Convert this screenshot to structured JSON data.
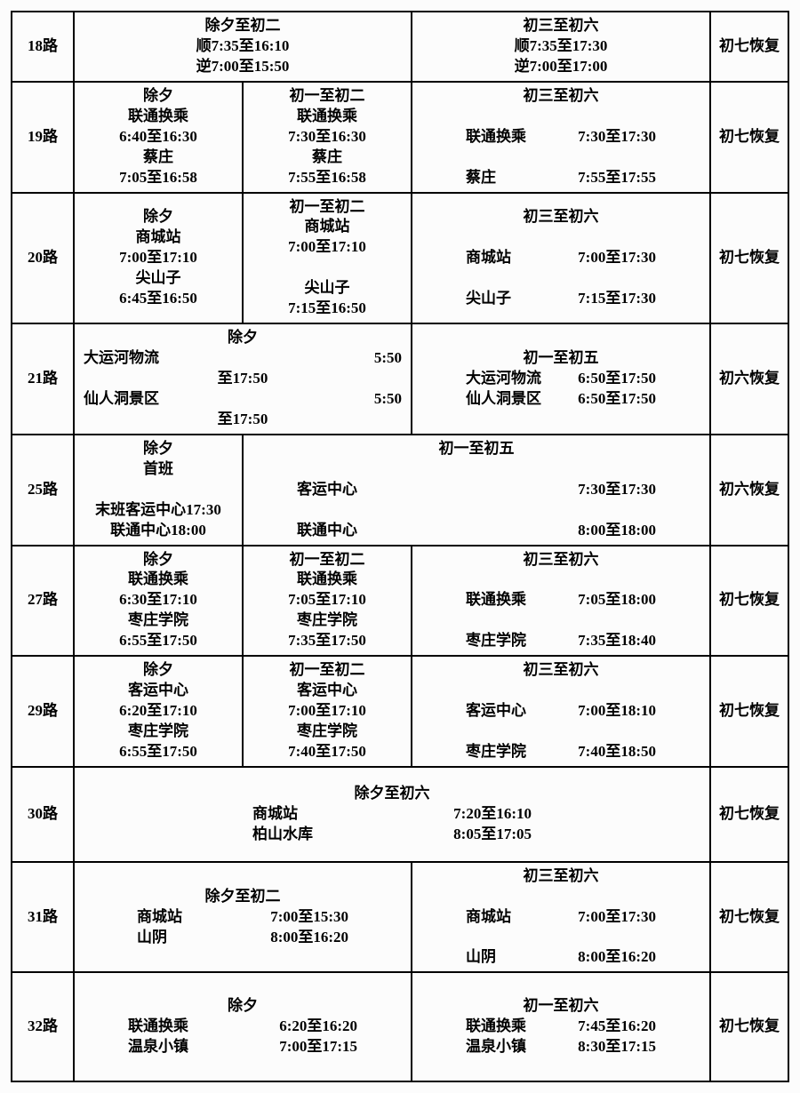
{
  "border_color": "#000000",
  "background_color": "#fcfcfc",
  "font_weight": "bold",
  "font_size_pt": 13,
  "routes": {
    "r18": {
      "name": "18路",
      "a": [
        "除夕至初二",
        "顺7:35至16:10",
        "逆7:00至15:50"
      ],
      "b": [
        "初三至初六",
        "顺7:35至17:30",
        "逆7:00至17:00"
      ],
      "resume": "初七恢复"
    },
    "r19": {
      "name": "19路",
      "a": [
        "除夕",
        "联通换乘",
        "6:40至16:30",
        "蔡庄",
        "7:05至16:58"
      ],
      "b": [
        "初一至初二",
        "联通换乘",
        "7:30至16:30",
        "蔡庄",
        "7:55至16:58"
      ],
      "c_title": "初三至初六",
      "c_rows": [
        {
          "k": "联通换乘",
          "v": "7:30至17:30"
        },
        {
          "k": "蔡庄",
          "v": "7:55至17:55"
        }
      ],
      "resume": "初七恢复"
    },
    "r20": {
      "name": "20路",
      "a": [
        "除夕",
        "商城站",
        "7:00至17:10",
        "尖山子",
        "6:45至16:50"
      ],
      "b": [
        "初一至初二",
        "商城站",
        "7:00至17:10",
        "尖山子",
        "7:15至16:50"
      ],
      "c_title": "初三至初六",
      "c_rows": [
        {
          "k": "商城站",
          "v": "7:00至17:30"
        },
        {
          "k": "尖山子",
          "v": "7:15至17:30"
        }
      ],
      "resume": "初七恢复"
    },
    "r21": {
      "name": "21路",
      "a_title": "除夕",
      "a_rows": [
        {
          "k": "大运河物流",
          "v": "5:50"
        },
        {
          "k": "",
          "v": "至17:50"
        },
        {
          "k": "仙人洞景区",
          "v": "5:50"
        },
        {
          "k": "",
          "v": "至17:50"
        }
      ],
      "b_title": "初一至初五",
      "b_rows": [
        {
          "k": "大运河物流",
          "v": "6:50至17:50"
        },
        {
          "k": "仙人洞景区",
          "v": "6:50至17:50"
        }
      ],
      "resume": "初六恢复"
    },
    "r25": {
      "name": "25路",
      "a": [
        "除夕",
        "首班",
        "末班客运中心17:30",
        "联通中心18:00"
      ],
      "b_title": "初一至初五",
      "b_rows": [
        {
          "k": "客运中心",
          "v": "7:30至17:30"
        },
        {
          "k": "联通中心",
          "v": "8:00至18:00"
        }
      ],
      "resume": "初六恢复"
    },
    "r27": {
      "name": "27路",
      "a": [
        "除夕",
        "联通换乘",
        "6:30至17:10",
        "枣庄学院",
        "6:55至17:50"
      ],
      "b": [
        "初一至初二",
        "联通换乘",
        "7:05至17:10",
        "枣庄学院",
        "7:35至17:50"
      ],
      "c_title": "初三至初六",
      "c_rows": [
        {
          "k": "联通换乘",
          "v": "7:05至18:00"
        },
        {
          "k": "枣庄学院",
          "v": "7:35至18:40"
        }
      ],
      "resume": "初七恢复"
    },
    "r29": {
      "name": "29路",
      "a": [
        "除夕",
        "客运中心",
        "6:20至17:10",
        "枣庄学院",
        "6:55至17:50"
      ],
      "b": [
        "初一至初二",
        "客运中心",
        "7:00至17:10",
        "枣庄学院",
        "7:40至17:50"
      ],
      "c_title": "初三至初六",
      "c_rows": [
        {
          "k": "客运中心",
          "v": "7:00至18:10"
        },
        {
          "k": "枣庄学院",
          "v": "7:40至18:50"
        }
      ],
      "resume": "初七恢复"
    },
    "r30": {
      "name": "30路",
      "title": "除夕至初六",
      "rows": [
        {
          "k": "商城站",
          "v": "7:20至16:10"
        },
        {
          "k": "柏山水库",
          "v": "8:05至17:05"
        }
      ],
      "resume": "初七恢复"
    },
    "r31": {
      "name": "31路",
      "a_title": "除夕至初二",
      "a_rows": [
        {
          "k": "商城站",
          "v": "7:00至15:30"
        },
        {
          "k": "山阴",
          "v": "8:00至16:20"
        }
      ],
      "b_title": "初三至初六",
      "b_rows": [
        {
          "k": "商城站",
          "v": "7:00至17:30"
        },
        {
          "k": "山阴",
          "v": "8:00至16:20"
        }
      ],
      "resume": "初七恢复"
    },
    "r32": {
      "name": "32路",
      "a_title": "除夕",
      "a_rows": [
        {
          "k": "联通换乘",
          "v": "6:20至16:20"
        },
        {
          "k": "温泉小镇",
          "v": "7:00至17:15"
        }
      ],
      "b_title": "初一至初六",
      "b_rows": [
        {
          "k": "联通换乘",
          "v": "7:45至16:20"
        },
        {
          "k": "温泉小镇",
          "v": "8:30至17:15"
        }
      ],
      "resume": "初七恢复"
    }
  }
}
